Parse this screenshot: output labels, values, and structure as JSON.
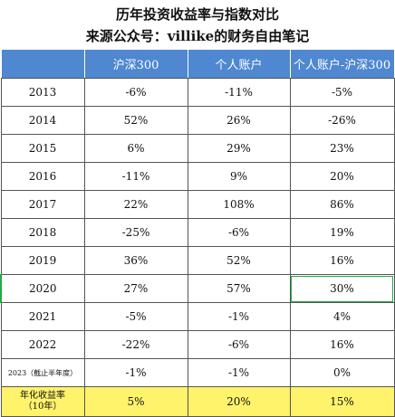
{
  "title": {
    "line1": "历年投资收益率与指数对比",
    "line2": "来源公众号：villike的财务自由笔记"
  },
  "table": {
    "headers": [
      "",
      "沪深300",
      "个人账户",
      "个人账户-沪深300"
    ],
    "rows": [
      {
        "label": "2013",
        "hs300": "-6%",
        "personal": "-11%",
        "diff": "-5%"
      },
      {
        "label": "2014",
        "hs300": "52%",
        "personal": "26%",
        "diff": "-26%"
      },
      {
        "label": "2015",
        "hs300": "6%",
        "personal": "29%",
        "diff": "23%"
      },
      {
        "label": "2016",
        "hs300": "-11%",
        "personal": "9%",
        "diff": "20%"
      },
      {
        "label": "2017",
        "hs300": "22%",
        "personal": "108%",
        "diff": "86%"
      },
      {
        "label": "2018",
        "hs300": "-25%",
        "personal": "-6%",
        "diff": "19%"
      },
      {
        "label": "2019",
        "hs300": "36%",
        "personal": "52%",
        "diff": "16%"
      },
      {
        "label": "2020",
        "hs300": "27%",
        "personal": "57%",
        "diff": "30%"
      },
      {
        "label": "2021",
        "hs300": "-5%",
        "personal": "-1%",
        "diff": "4%"
      },
      {
        "label": "2022",
        "hs300": "-22%",
        "personal": "-6%",
        "diff": "16%"
      },
      {
        "label": "2023（截止半年度）",
        "hs300": "-1%",
        "personal": "-1%",
        "diff": "0%"
      }
    ],
    "summary": {
      "label_line1": "年化收益率",
      "label_line2": "（10年）",
      "hs300": "5%",
      "personal": "20%",
      "diff": "15%"
    }
  },
  "colors": {
    "header_bg": "#4f87d0",
    "summary_bg": "#fff36b",
    "selection_outline": "#22aa44"
  }
}
